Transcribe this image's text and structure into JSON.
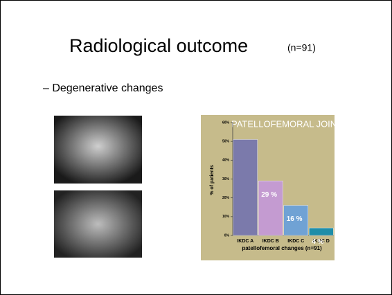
{
  "slide": {
    "title": "Radiological outcome",
    "title_note": "(n=91)",
    "bullet": "– Degenerative changes"
  },
  "chart_data": {
    "type": "bar",
    "title": "PATELLOFEMORAL JOINT",
    "x_label": "patellofemoral changes (n=91)",
    "y_label": "% of patients",
    "categories": [
      "IKDC A",
      "IKDC B",
      "IKDC C",
      "IKDC D"
    ],
    "values": [
      51,
      29,
      16,
      4
    ],
    "value_labels": [
      null,
      "29 %",
      "16 %",
      "4 %"
    ],
    "colors": [
      "#7b7aab",
      "#c49bd1",
      "#70a2d4",
      "#1e8da8"
    ],
    "ylim": [
      0,
      60
    ],
    "yticks": [
      {
        "value": 0,
        "label": "0%"
      },
      {
        "value": 10,
        "label": "10%"
      },
      {
        "value": 20,
        "label": "20%"
      },
      {
        "value": 30,
        "label": "30%"
      },
      {
        "value": 40,
        "label": "40%"
      },
      {
        "value": 50,
        "label": "50%"
      },
      {
        "value": 60,
        "label": "60%"
      }
    ]
  }
}
